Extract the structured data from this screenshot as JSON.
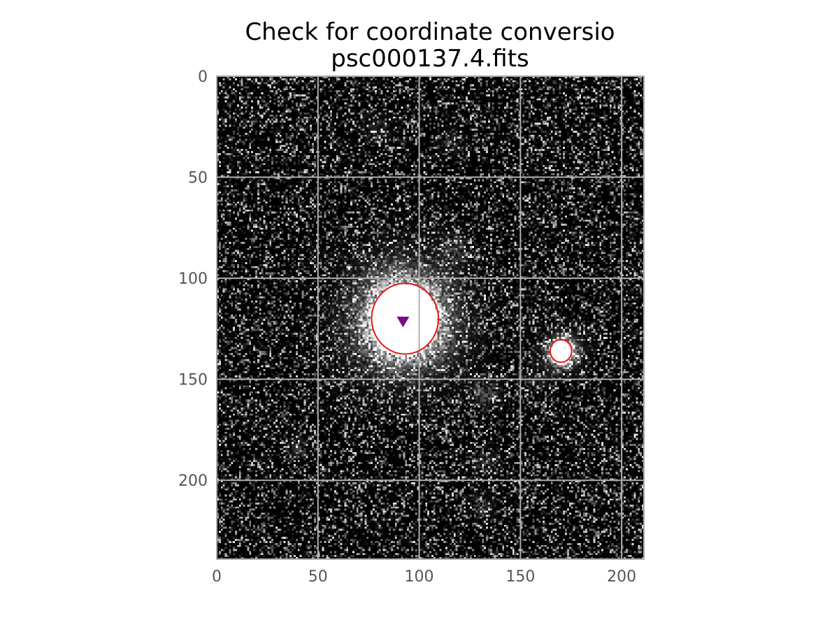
{
  "chart_data": {
    "type": "image",
    "title_lines": [
      "Check for coordinate conversio",
      "psc000137.4.fits"
    ],
    "image_width": 211,
    "image_height": 239,
    "xlim": [
      0,
      211
    ],
    "ylim": [
      239,
      0
    ],
    "x_ticks": [
      0,
      50,
      100,
      150,
      200
    ],
    "y_ticks": [
      0,
      50,
      100,
      150,
      200
    ],
    "grid": true,
    "colormap": "gray",
    "colors": {
      "grid": "#b0b0b0",
      "spine": "#aaaaaa",
      "ellipse": "#e8141a",
      "marker": "#7b0a82",
      "tick_label": "#555555"
    },
    "sources": [
      {
        "name": "bright-source",
        "x": 92,
        "y": 120,
        "rx": 16.5,
        "ry": 17.5
      },
      {
        "name": "faint-source",
        "x": 170,
        "y": 136,
        "rx": 5.3,
        "ry": 5.6
      }
    ],
    "ellipses": [
      {
        "x": 93,
        "y": 120,
        "rx": 16.5,
        "ry": 17.5,
        "color": "red"
      },
      {
        "x": 170,
        "y": 136,
        "rx": 5.3,
        "ry": 5.6,
        "color": "red"
      }
    ],
    "marker": {
      "x": 92,
      "y": 121.5,
      "shape": "triangle-down",
      "color": "purple"
    }
  }
}
